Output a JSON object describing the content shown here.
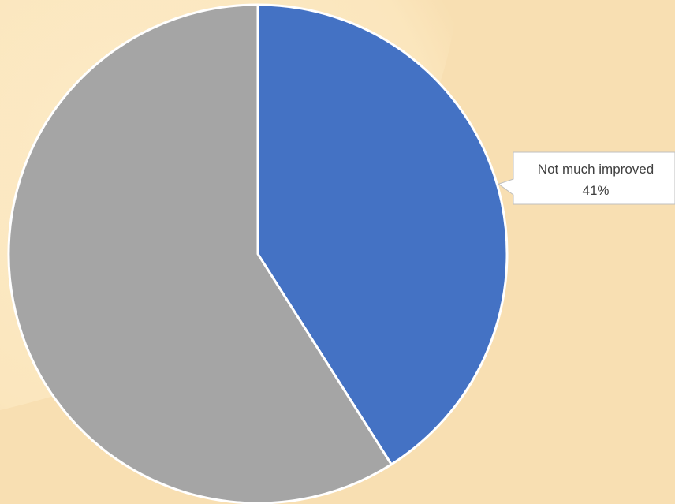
{
  "colors": {
    "background": "#f8dfb2",
    "background_glow": "#fbe8c2",
    "slice_border": "#ffffff",
    "callout_fill": "#ffffff",
    "callout_border": "#bfbfbf",
    "label_text": "#404040"
  },
  "chart_data": {
    "type": "pie",
    "slices": [
      {
        "label": "Not much improved",
        "value": 41,
        "value_label": "41%",
        "color": "#4472c4",
        "labeled": true
      },
      {
        "label": "",
        "value": 59,
        "value_label": "",
        "color": "#a5a5a5",
        "labeled": false
      }
    ],
    "start_angle_deg": 0,
    "direction": "clockwise"
  }
}
